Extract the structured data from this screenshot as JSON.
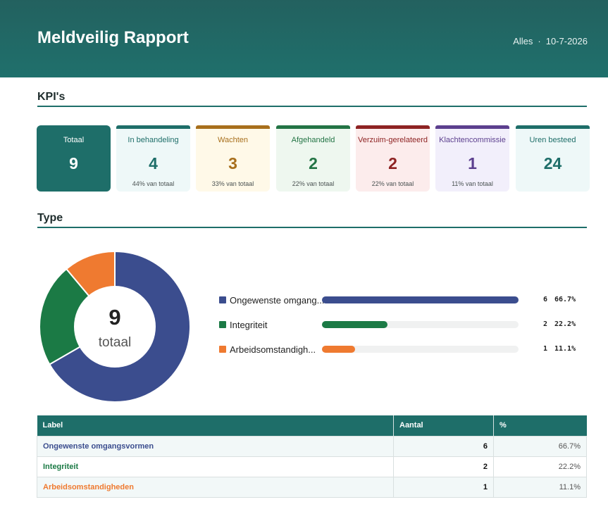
{
  "header": {
    "title": "Meldveilig Rapport",
    "scope": "Alles",
    "separator": "·",
    "date": "10-7-2026"
  },
  "colors": {
    "teal": "#1e6e69",
    "blue": "#3b4d8e",
    "green": "#1b7a45",
    "orange": "#ef7a30"
  },
  "kpi_section": {
    "title": "KPI's"
  },
  "kpis": [
    {
      "label": "Totaal",
      "value": "9",
      "sub": "",
      "bg": "#1e6e69",
      "bar": "",
      "labelColor": "#ffffff",
      "valueColor": "#ffffff"
    },
    {
      "label": "In behandeling",
      "value": "4",
      "sub": "44% van totaal",
      "bg": "#eef8f8",
      "bar": "#1e6e69",
      "labelColor": "#1e6e69",
      "valueColor": "#1e6e69"
    },
    {
      "label": "Wachten",
      "value": "3",
      "sub": "33% van totaal",
      "bg": "#fff9e8",
      "bar": "#a86f1c",
      "labelColor": "#a86f1c",
      "valueColor": "#a86f1c"
    },
    {
      "label": "Afgehandeld",
      "value": "2",
      "sub": "22% van totaal",
      "bg": "#eef7ef",
      "bar": "#237445",
      "labelColor": "#237445",
      "valueColor": "#237445"
    },
    {
      "label": "Verzuim-gerelateerd",
      "value": "2",
      "sub": "22% van totaal",
      "bg": "#fcecec",
      "bar": "#8e2323",
      "labelColor": "#8e2323",
      "valueColor": "#8e2323"
    },
    {
      "label": "Klachtencommissie",
      "value": "1",
      "sub": "11% van totaal",
      "bg": "#f2effb",
      "bar": "#5c3f8e",
      "labelColor": "#5c3f8e",
      "valueColor": "#5c3f8e"
    },
    {
      "label": "Uren besteed",
      "value": "24",
      "sub": "",
      "bg": "#eef8f8",
      "bar": "#1e6e69",
      "labelColor": "#1e6e69",
      "valueColor": "#1e6e69"
    }
  ],
  "type_section": {
    "title": "Type"
  },
  "donut": {
    "center_value": "9",
    "center_label": "totaal"
  },
  "chart_data": {
    "type": "pie",
    "title": "",
    "categories": [
      "Ongewenste omgangsvormen",
      "Integriteit",
      "Arbeidsomstandigheden"
    ],
    "values": [
      6,
      2,
      1
    ],
    "percentages": [
      "66.7%",
      "22.2%",
      "11.1%"
    ],
    "colors": [
      "#3b4d8e",
      "#1b7a45",
      "#ef7a30"
    ],
    "legend_labels": [
      "Ongewenste omgang...",
      "Integriteit",
      "Arbeidsomstandigh..."
    ],
    "legend_pct": [
      "66.7%",
      "22.2%",
      "11.1%"
    ],
    "legend_position": "right"
  },
  "table": {
    "headers": [
      "Label",
      "Aantal",
      "%"
    ],
    "rows": [
      {
        "label": "Ongewenste omgangsvormen",
        "count": "6",
        "pct": "66.7%",
        "color": "#3b4d8e"
      },
      {
        "label": "Integriteit",
        "count": "2",
        "pct": "22.2%",
        "color": "#1b7a45"
      },
      {
        "label": "Arbeidsomstandigheden",
        "count": "1",
        "pct": "11.1%",
        "color": "#ef7a30"
      }
    ]
  }
}
